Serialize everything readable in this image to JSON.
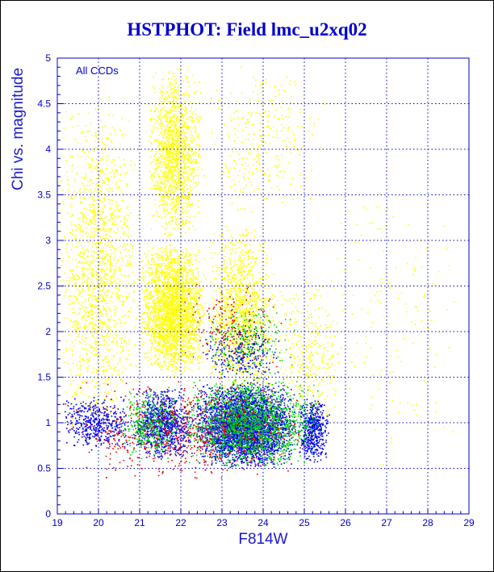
{
  "chart_data": {
    "type": "scatter",
    "title": "HSTPHOT: Field lmc_u2xq02",
    "xlabel": "F814W",
    "ylabel": "Chi vs. magnitude",
    "annotation": "All CCDs",
    "xlim": [
      19,
      29
    ],
    "ylim": [
      0,
      5
    ],
    "x_ticks": [
      "19",
      "20",
      "21",
      "22",
      "23",
      "24",
      "25",
      "26",
      "27",
      "28",
      "29"
    ],
    "y_ticks": [
      "0",
      "0.5",
      "1",
      "1.5",
      "2",
      "2.5",
      "3",
      "3.5",
      "4",
      "4.5",
      "5"
    ],
    "grid": true,
    "colors": {
      "axis": "#0000cc",
      "grid": "#0000cc"
    },
    "series": [
      {
        "color": "#ffff00",
        "clusters": [
          {
            "n": 2600,
            "x": [
              21.0,
              22.6
            ],
            "y": [
              1.5,
              3.0
            ]
          },
          {
            "n": 1400,
            "x": [
              21.2,
              22.5
            ],
            "y": [
              3.0,
              4.9
            ]
          },
          {
            "n": 1500,
            "x": [
              19.0,
              21.0
            ],
            "y": [
              0.8,
              4.6
            ]
          },
          {
            "n": 1300,
            "x": [
              22.6,
              24.3
            ],
            "y": [
              1.2,
              3.2
            ]
          },
          {
            "n": 300,
            "x": [
              22.5,
              25.5
            ],
            "y": [
              3.2,
              5.0
            ]
          },
          {
            "n": 350,
            "x": [
              24.3,
              25.9
            ],
            "y": [
              0.9,
              2.6
            ]
          },
          {
            "n": 150,
            "x": [
              25.5,
              28.8
            ],
            "y": [
              0.5,
              4.0
            ]
          }
        ]
      },
      {
        "color": "#0000ee",
        "clusters": [
          {
            "n": 3400,
            "x": [
              22.3,
              24.8
            ],
            "y": [
              0.5,
              1.45
            ]
          },
          {
            "n": 900,
            "x": [
              20.8,
              22.3
            ],
            "y": [
              0.6,
              1.4
            ]
          },
          {
            "n": 500,
            "x": [
              24.8,
              25.6
            ],
            "y": [
              0.55,
              1.3
            ]
          },
          {
            "n": 450,
            "x": [
              19.1,
              20.8
            ],
            "y": [
              0.7,
              1.3
            ]
          },
          {
            "n": 250,
            "x": [
              22.5,
              24.5
            ],
            "y": [
              1.45,
              2.1
            ]
          }
        ]
      },
      {
        "color": "#00dd00",
        "clusters": [
          {
            "n": 1600,
            "x": [
              22.0,
              25.4
            ],
            "y": [
              0.5,
              1.5
            ]
          },
          {
            "n": 350,
            "x": [
              20.5,
              22.0
            ],
            "y": [
              0.6,
              1.4
            ]
          },
          {
            "n": 200,
            "x": [
              22.5,
              24.8
            ],
            "y": [
              1.5,
              2.3
            ]
          }
        ]
      },
      {
        "color": "#ee0000",
        "clusters": [
          {
            "n": 650,
            "x": [
              19.1,
              25.3
            ],
            "y": [
              0.35,
              1.5
            ]
          },
          {
            "n": 150,
            "x": [
              22.0,
              24.5
            ],
            "y": [
              1.5,
              2.6
            ]
          }
        ]
      }
    ]
  }
}
